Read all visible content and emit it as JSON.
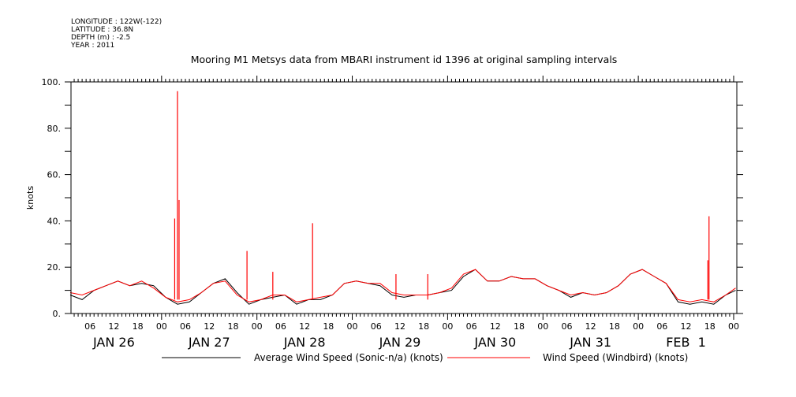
{
  "header": {
    "lines": [
      "LONGITUDE : 122W(-122)",
      "LATITUDE : 36.8N",
      "DEPTH (m) : -2.5",
      "YEAR : 2011"
    ]
  },
  "chart_data": {
    "type": "line",
    "title": "Mooring M1 Metsys data from MBARI instrument id 1396 at original sampling intervals",
    "xlabel": "",
    "ylabel": "knots",
    "x_units": "hours since JAN 26 2011 00:00",
    "xlim": [
      1.2,
      168.8
    ],
    "ylim": [
      0,
      100
    ],
    "yticks": [
      0,
      20,
      40,
      60,
      80,
      100
    ],
    "ytick_labels": [
      "0.",
      "20.",
      "40.",
      "60.",
      "80.",
      "100."
    ],
    "hour_labels": [
      "00",
      "06",
      "12",
      "18"
    ],
    "day_labels": [
      {
        "label": "JAN 26",
        "noon_hour": 12
      },
      {
        "label": "JAN 27",
        "noon_hour": 36
      },
      {
        "label": "JAN 28",
        "noon_hour": 60
      },
      {
        "label": "JAN 29",
        "noon_hour": 84
      },
      {
        "label": "JAN 30",
        "noon_hour": 108
      },
      {
        "label": "JAN 31",
        "noon_hour": 132
      },
      {
        "label": "FEB  1",
        "noon_hour": 156
      }
    ],
    "grid": false,
    "legend": "bottom",
    "series": [
      {
        "name": "Average Wind Speed (Sonic-n/a) (knots)",
        "color": "#000000",
        "x": [
          1,
          4,
          7,
          10,
          13,
          16,
          19,
          22,
          25,
          28,
          31,
          34,
          37,
          40,
          43,
          46,
          49,
          52,
          55,
          58,
          61,
          64,
          67,
          70,
          73,
          76,
          79,
          82,
          85,
          88,
          91,
          94,
          97,
          100,
          103,
          106,
          109,
          112,
          115,
          118,
          121,
          124,
          127,
          130,
          133,
          136,
          139,
          142,
          145,
          148,
          151,
          154,
          157,
          160,
          163,
          166,
          168.5
        ],
        "values": [
          8,
          6,
          10,
          12,
          14,
          12,
          13,
          12,
          7,
          4,
          5,
          9,
          13,
          15,
          9,
          4,
          6,
          7,
          8,
          4,
          6,
          6,
          8,
          13,
          14,
          13,
          12,
          8,
          7,
          8,
          8,
          9,
          10,
          16,
          19,
          14,
          14,
          16,
          15,
          15,
          12,
          10,
          7,
          9,
          8,
          9,
          12,
          17,
          19,
          16,
          13,
          5,
          4,
          5,
          4,
          8,
          10
        ]
      },
      {
        "name": "Wind Speed (Windbird) (knots)",
        "color": "#ff0000",
        "x": [
          1,
          4,
          7,
          10,
          13,
          16,
          19,
          22,
          25,
          28,
          31,
          34,
          37,
          40,
          43,
          46,
          49,
          52,
          55,
          58,
          61,
          64,
          67,
          70,
          73,
          76,
          79,
          82,
          85,
          88,
          91,
          94,
          97,
          100,
          103,
          106,
          109,
          112,
          115,
          118,
          121,
          124,
          127,
          130,
          133,
          136,
          139,
          142,
          145,
          148,
          151,
          154,
          157,
          160,
          163,
          166,
          168.5
        ],
        "values": [
          9,
          8,
          10,
          12,
          14,
          12,
          14,
          11,
          7,
          5,
          6,
          9,
          13,
          14,
          8,
          5,
          6,
          8,
          8,
          5,
          6,
          7,
          8,
          13,
          14,
          13,
          13,
          9,
          8,
          8,
          8,
          9,
          11,
          17,
          19,
          14,
          14,
          16,
          15,
          15,
          12,
          10,
          8,
          9,
          8,
          9,
          12,
          17,
          19,
          16,
          13,
          6,
          5,
          6,
          5,
          8,
          11
        ],
        "spikes": [
          {
            "x": 27.3,
            "value": 41
          },
          {
            "x": 28.0,
            "value": 96
          },
          {
            "x": 28.4,
            "value": 49
          },
          {
            "x": 45.5,
            "value": 27
          },
          {
            "x": 52.0,
            "value": 18
          },
          {
            "x": 62.0,
            "value": 39
          },
          {
            "x": 83.0,
            "value": 17
          },
          {
            "x": 91.0,
            "value": 17
          },
          {
            "x": 161.5,
            "value": 23
          },
          {
            "x": 161.8,
            "value": 42
          }
        ]
      }
    ]
  }
}
